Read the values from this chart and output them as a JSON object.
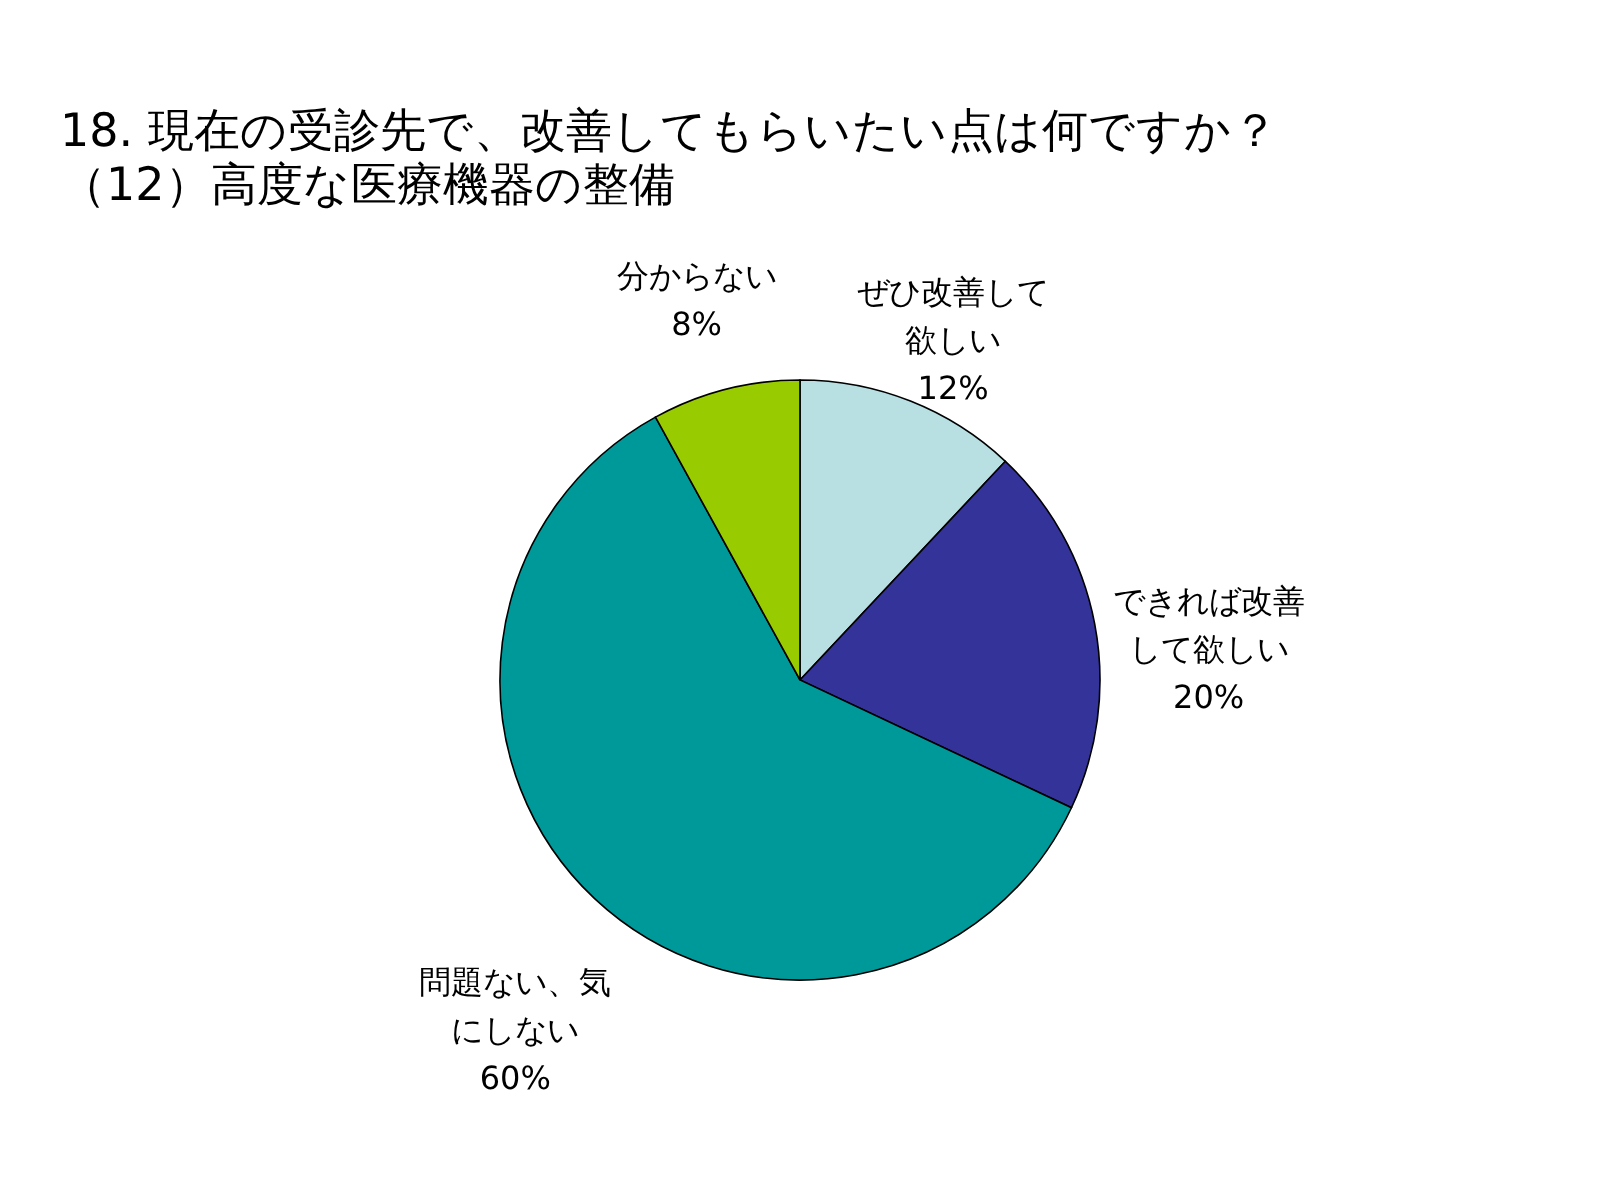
{
  "chart_data": {
    "type": "pie",
    "title": "18. 現在の受診先で、改善してもらいたい点は何ですか？",
    "subtitle": "（12）高度な医療機器の整備",
    "categories": [
      "ぜひ改善して欲しい",
      "できれば改善して欲しい",
      "問題ない、気にしない",
      "分からない"
    ],
    "values": [
      12,
      20,
      60,
      8
    ],
    "value_labels": [
      "12%",
      "20%",
      "60%",
      "8%"
    ],
    "colors": [
      "#b8e0e3",
      "#333399",
      "#009999",
      "#99cc00"
    ],
    "legend": false
  }
}
